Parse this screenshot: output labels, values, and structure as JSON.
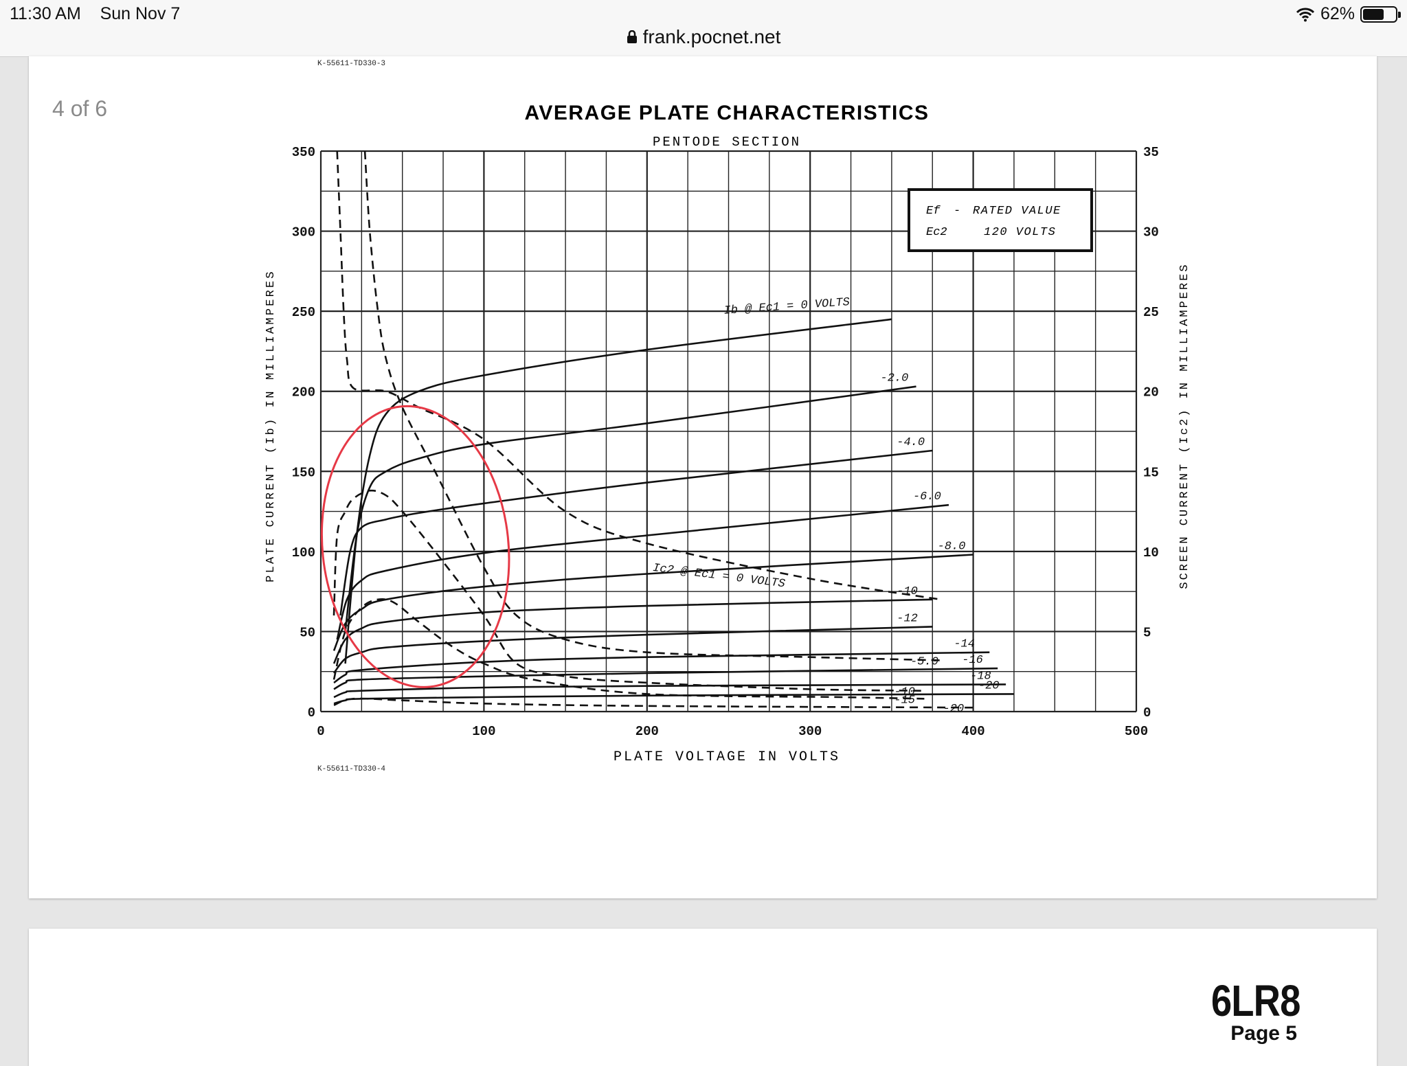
{
  "status_bar": {
    "time": "11:30 AM",
    "date": "Sun Nov 7",
    "battery": "62%",
    "battery_level": 0.62,
    "url": "frank.pocnet.net"
  },
  "viewer": {
    "page_indicator": "4 of 6"
  },
  "document": {
    "code_top": "K-55611-TD330-3",
    "code_bottom": "K-55611-TD330-4",
    "tube_name": "6LR8",
    "page_label": "Page 5"
  },
  "chart_data": {
    "type": "line",
    "title": "AVERAGE PLATE CHARACTERISTICS",
    "subtitle": "PENTODE SECTION",
    "xlabel": "PLATE VOLTAGE IN VOLTS",
    "ylabel": "PLATE CURRENT (Ib) IN MILLIAMPERES",
    "y2label": "SCREEN CURRENT (Ic2) IN MILLIAMPERES",
    "xlim": [
      0,
      500
    ],
    "ylim": [
      0,
      350
    ],
    "y2lim": [
      0,
      35
    ],
    "x_ticks": [
      "0",
      "100",
      "200",
      "300",
      "400",
      "500"
    ],
    "y_ticks": [
      "0",
      "50",
      "100",
      "150",
      "200",
      "250",
      "300",
      "350"
    ],
    "y2_ticks": [
      "0",
      "5",
      "10",
      "15",
      "20",
      "25",
      "30",
      "35"
    ],
    "grid": true,
    "info_box": {
      "line1_label": "Ef",
      "line1_value": "RATED VALUE",
      "line2_label": "Ec2",
      "line2_value": "120 VOLTS"
    },
    "series_ib": [
      {
        "name": "0 VOLTS",
        "label": "Ib @ Ec1 = 0 VOLTS",
        "points": [
          [
            15,
            30
          ],
          [
            22,
            110
          ],
          [
            30,
            160
          ],
          [
            40,
            186
          ],
          [
            60,
            200
          ],
          [
            100,
            210
          ],
          [
            200,
            226
          ],
          [
            350,
            245
          ]
        ]
      },
      {
        "name": "-2.0",
        "points": [
          [
            15,
            50
          ],
          [
            22,
            110
          ],
          [
            30,
            140
          ],
          [
            40,
            150
          ],
          [
            60,
            158
          ],
          [
            100,
            167
          ],
          [
            200,
            180
          ],
          [
            365,
            203
          ]
        ]
      },
      {
        "name": "-4.0",
        "points": [
          [
            12,
            60
          ],
          [
            18,
            100
          ],
          [
            25,
            115
          ],
          [
            40,
            120
          ],
          [
            60,
            124
          ],
          [
            100,
            130
          ],
          [
            200,
            143
          ],
          [
            375,
            163
          ]
        ]
      },
      {
        "name": "-6.0",
        "points": [
          [
            10,
            45
          ],
          [
            16,
            70
          ],
          [
            25,
            82
          ],
          [
            40,
            88
          ],
          [
            100,
            99
          ],
          [
            200,
            110
          ],
          [
            385,
            129
          ]
        ]
      },
      {
        "name": "-8.0",
        "points": [
          [
            8,
            38
          ],
          [
            15,
            55
          ],
          [
            25,
            64
          ],
          [
            40,
            70
          ],
          [
            100,
            78
          ],
          [
            200,
            86
          ],
          [
            400,
            98
          ]
        ]
      },
      {
        "name": "-10",
        "points": [
          [
            8,
            30
          ],
          [
            15,
            45
          ],
          [
            25,
            52
          ],
          [
            40,
            56
          ],
          [
            100,
            62
          ],
          [
            200,
            66
          ],
          [
            375,
            70
          ]
        ]
      },
      {
        "name": "-12",
        "points": [
          [
            8,
            24
          ],
          [
            15,
            33
          ],
          [
            25,
            37
          ],
          [
            40,
            40
          ],
          [
            100,
            44
          ],
          [
            200,
            48
          ],
          [
            375,
            53
          ]
        ]
      },
      {
        "name": "-14",
        "points": [
          [
            8,
            18
          ],
          [
            15,
            23
          ],
          [
            25,
            26
          ],
          [
            100,
            31
          ],
          [
            200,
            34
          ],
          [
            410,
            37
          ]
        ]
      },
      {
        "name": "-16",
        "points": [
          [
            8,
            14
          ],
          [
            15,
            18
          ],
          [
            25,
            20
          ],
          [
            100,
            22
          ],
          [
            200,
            24
          ],
          [
            415,
            27
          ]
        ]
      },
      {
        "name": "-18",
        "points": [
          [
            8,
            9
          ],
          [
            15,
            12
          ],
          [
            25,
            13
          ],
          [
            100,
            15
          ],
          [
            200,
            16
          ],
          [
            420,
            17
          ]
        ]
      },
      {
        "name": "-20",
        "points": [
          [
            8,
            5
          ],
          [
            15,
            7
          ],
          [
            25,
            8
          ],
          [
            100,
            9
          ],
          [
            200,
            10
          ],
          [
            425,
            11
          ]
        ]
      }
    ],
    "series_ic2": [
      {
        "name": "0 VOLTS",
        "label": "Ic2 @ Ec1 = 0 VOLTS",
        "points": [
          [
            10,
            35
          ],
          [
            12,
            30
          ],
          [
            14,
            25
          ],
          [
            16,
            22
          ],
          [
            20,
            20.2
          ],
          [
            40,
            20
          ],
          [
            60,
            19
          ],
          [
            100,
            17
          ],
          [
            150,
            12.5
          ],
          [
            200,
            10.5
          ],
          [
            300,
            8.3
          ],
          [
            380,
            7
          ]
        ]
      },
      {
        "name": "-5.0",
        "points": [
          [
            27,
            35
          ],
          [
            30,
            30
          ],
          [
            35,
            25
          ],
          [
            40,
            22
          ],
          [
            50,
            19
          ],
          [
            70,
            15
          ],
          [
            100,
            9
          ],
          [
            120,
            6
          ],
          [
            150,
            4.5
          ],
          [
            200,
            3.7
          ],
          [
            300,
            3.4
          ],
          [
            380,
            3.2
          ]
        ]
      },
      {
        "name": "-10",
        "points": [
          [
            8,
            6
          ],
          [
            10,
            11
          ],
          [
            15,
            12.5
          ],
          [
            20,
            13.3
          ],
          [
            30,
            13.8
          ],
          [
            40,
            13.5
          ],
          [
            50,
            12.5
          ],
          [
            70,
            10
          ],
          [
            100,
            6
          ],
          [
            120,
            3
          ],
          [
            150,
            2.2
          ],
          [
            200,
            1.8
          ],
          [
            300,
            1.4
          ],
          [
            370,
            1.3
          ]
        ]
      },
      {
        "name": "-15",
        "points": [
          [
            8,
            2
          ],
          [
            15,
            5
          ],
          [
            25,
            6.5
          ],
          [
            35,
            7
          ],
          [
            45,
            6.8
          ],
          [
            60,
            5.6
          ],
          [
            80,
            4.1
          ],
          [
            100,
            3
          ],
          [
            130,
            2
          ],
          [
            200,
            1.1
          ],
          [
            320,
            0.9
          ],
          [
            370,
            0.8
          ]
        ]
      },
      {
        "name": "-20",
        "points": [
          [
            8,
            0.4
          ],
          [
            20,
            0.8
          ],
          [
            50,
            0.7
          ],
          [
            100,
            0.5
          ],
          [
            200,
            0.35
          ],
          [
            400,
            0.25
          ]
        ]
      }
    ],
    "annotation": {
      "type": "circle",
      "color": "#e63946",
      "center": [
        58,
        103
      ],
      "radius_x": 57,
      "radius_y": 88
    }
  }
}
